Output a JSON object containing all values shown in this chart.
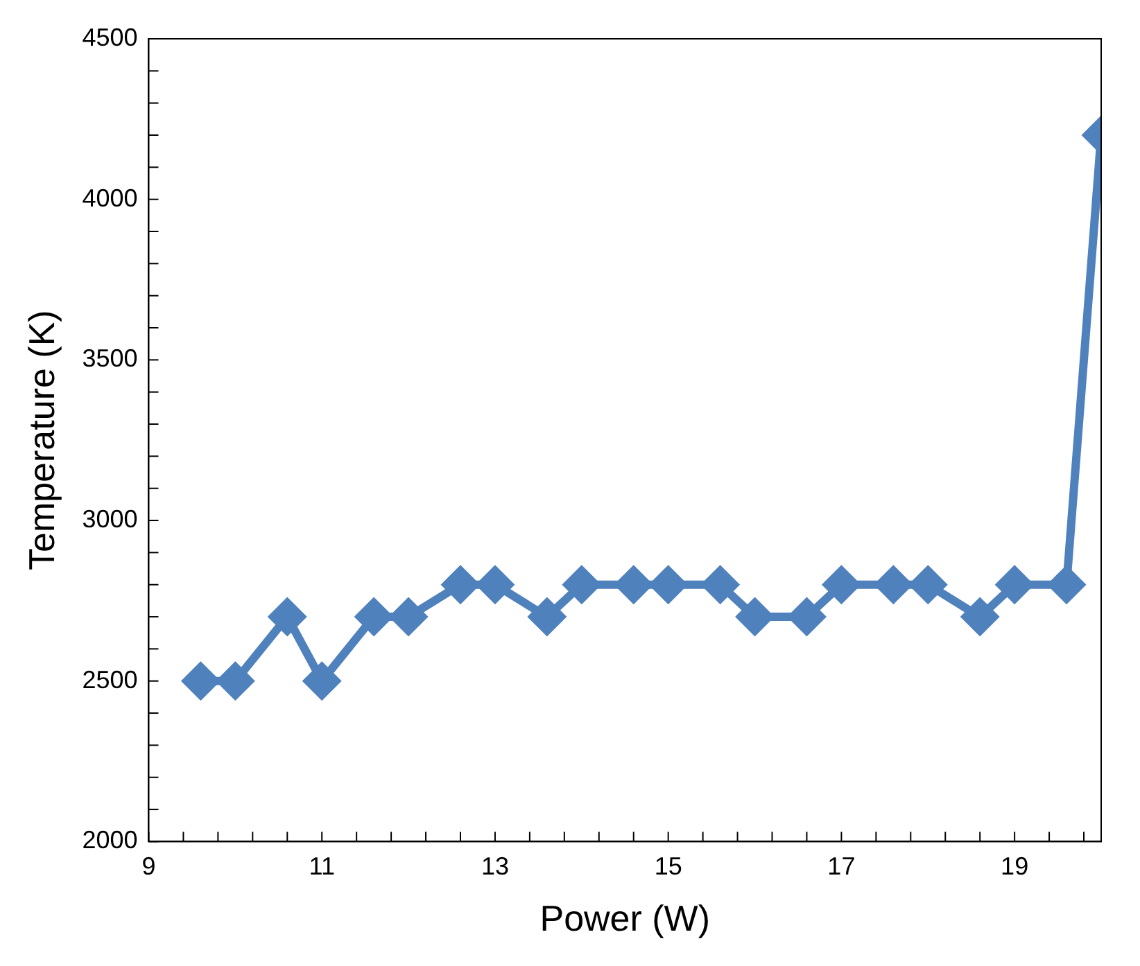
{
  "chart_data": {
    "type": "line",
    "xlabel": "Power (W)",
    "ylabel": "Temperature (K)",
    "x": [
      9.6,
      10,
      10.6,
      11,
      11.6,
      12,
      12.6,
      13,
      13.6,
      14,
      14.6,
      15,
      15.6,
      16,
      16.6,
      17,
      17.6,
      18,
      18.6,
      19,
      19.6,
      20
    ],
    "series": [
      {
        "color": "#4f81bd",
        "values": [
          2500,
          2500,
          2700,
          2500,
          2700,
          2700,
          2800,
          2800,
          2700,
          2800,
          2800,
          2800,
          2800,
          2700,
          2700,
          2800,
          2800,
          2800,
          2700,
          2800,
          2800,
          4200
        ]
      }
    ],
    "xlim": [
      9,
      20
    ],
    "xticks": [
      9,
      {
        "value": 9.4,
        "label": null
      },
      {
        "value": 9.8,
        "label": null
      },
      {
        "value": 10.2,
        "label": null
      },
      {
        "value": 10.6,
        "label": null
      },
      11,
      {
        "value": 11.4,
        "label": null
      },
      {
        "value": 11.8,
        "label": null
      },
      {
        "value": 12.2,
        "label": null
      },
      {
        "value": 12.6,
        "label": null
      },
      13,
      {
        "value": 13.4,
        "label": null
      },
      {
        "value": 13.8,
        "label": null
      },
      {
        "value": 14.2,
        "label": null
      },
      {
        "value": 14.6,
        "label": null
      },
      15,
      {
        "value": 15.4,
        "label": null
      },
      {
        "value": 15.8,
        "label": null
      },
      {
        "value": 16.2,
        "label": null
      },
      {
        "value": 16.6,
        "label": null
      },
      17,
      {
        "value": 17.4,
        "label": null
      },
      {
        "value": 17.8,
        "label": null
      },
      {
        "value": 18.2,
        "label": null
      },
      {
        "value": 18.6,
        "label": null
      },
      19,
      {
        "value": 19.4,
        "label": null
      },
      {
        "value": 19.8,
        "label": null
      }
    ],
    "ylim": [
      2000,
      4500
    ],
    "yticks": [
      2000,
      {
        "value": 2100,
        "label": null
      },
      {
        "value": 2200,
        "label": null
      },
      {
        "value": 2300,
        "label": null
      },
      {
        "value": 2400,
        "label": null
      },
      2500,
      {
        "value": 2600,
        "label": null
      },
      {
        "value": 2700,
        "label": null
      },
      {
        "value": 2800,
        "label": null
      },
      {
        "value": 2900,
        "label": null
      },
      3000,
      {
        "value": 3100,
        "label": null
      },
      {
        "value": 3200,
        "label": null
      },
      {
        "value": 3300,
        "label": null
      },
      {
        "value": 3400,
        "label": null
      },
      3500,
      {
        "value": 3600,
        "label": null
      },
      {
        "value": 3700,
        "label": null
      },
      {
        "value": 3800,
        "label": null
      },
      {
        "value": 3900,
        "label": null
      },
      4000,
      {
        "value": 4100,
        "label": null
      },
      {
        "value": 4200,
        "label": null
      },
      {
        "value": 4300,
        "label": null
      },
      {
        "value": 4400,
        "label": null
      },
      4500
    ],
    "grid": false,
    "legend": false,
    "marker": "diamond",
    "line_style": "solid"
  }
}
